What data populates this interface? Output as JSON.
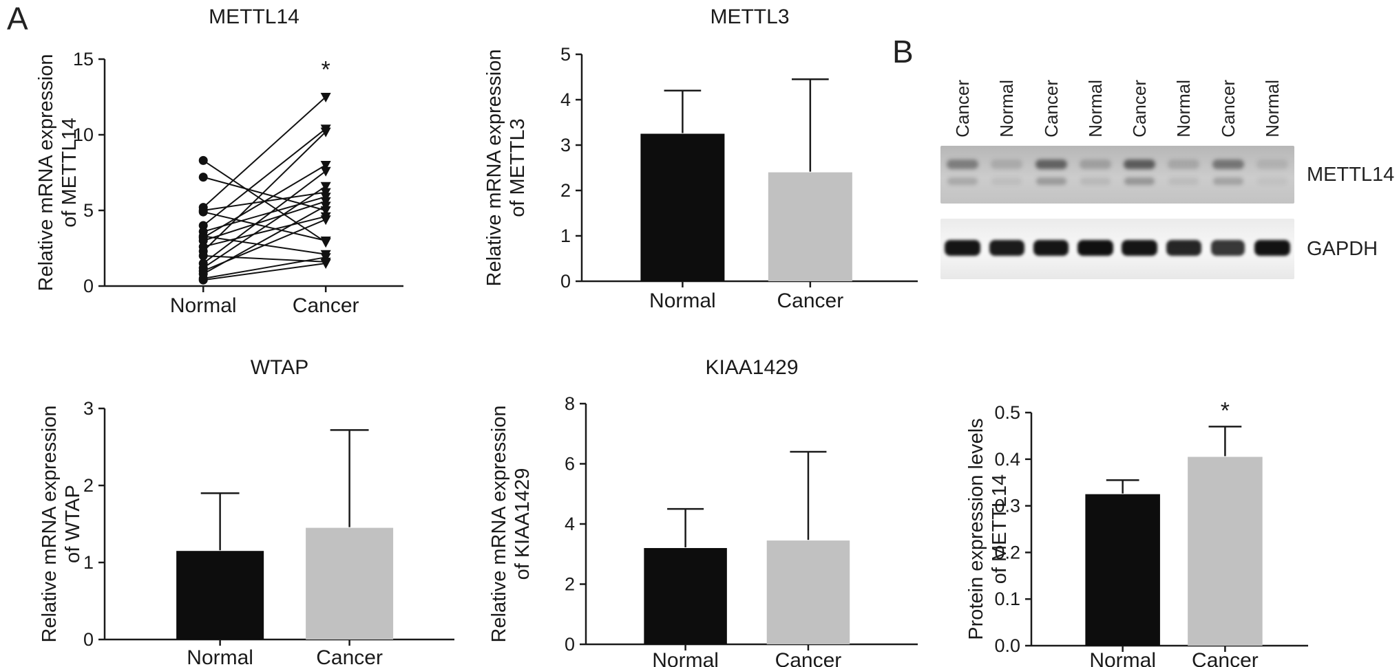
{
  "figure": {
    "panel_a": "A",
    "panel_b": "B",
    "colors": {
      "bar_normal": "#0d0d0d",
      "bar_cancer": "#c1c1c1",
      "axis": "#1a1a1a"
    }
  },
  "chart_data": [
    {
      "id": "mettl14-paired",
      "type": "scatter",
      "subtype": "paired-lines",
      "title": "METTL14",
      "ylabel": [
        "Relative mRNA expression",
        "of METTL14"
      ],
      "categories": [
        "Normal",
        "Cancer"
      ],
      "ylim": [
        0,
        15
      ],
      "yticks": [
        0,
        5,
        10,
        15
      ],
      "ytick_labels": [
        "0",
        "5",
        "10",
        "15"
      ],
      "markers": {
        "Normal": "filled-circle",
        "Cancer": "filled-triangle-down"
      },
      "sig": {
        "label": "*",
        "index": 1,
        "y": 13.8
      },
      "pairs": [
        [
          8.3,
          2.9
        ],
        [
          7.2,
          5.0
        ],
        [
          5.2,
          12.5
        ],
        [
          5.0,
          6.2
        ],
        [
          4.9,
          3.0
        ],
        [
          4.0,
          10.4
        ],
        [
          3.6,
          5.9
        ],
        [
          3.3,
          2.1
        ],
        [
          3.2,
          8.0
        ],
        [
          3.0,
          5.6
        ],
        [
          2.6,
          4.6
        ],
        [
          2.3,
          10.2
        ],
        [
          2.0,
          1.6
        ],
        [
          1.5,
          7.6
        ],
        [
          1.2,
          6.6
        ],
        [
          1.0,
          4.4
        ],
        [
          0.8,
          5.3
        ],
        [
          0.5,
          1.9
        ],
        [
          0.4,
          1.5
        ]
      ]
    },
    {
      "id": "mettl3",
      "type": "bar",
      "title": "METTL3",
      "ylabel": [
        "Relative mRNA expression",
        "of METTL3"
      ],
      "categories": [
        "Normal",
        "Cancer"
      ],
      "ylim": [
        0,
        5
      ],
      "yticks": [
        0,
        1,
        2,
        3,
        4,
        5
      ],
      "ytick_labels": [
        "0",
        "1",
        "2",
        "3",
        "4",
        "5"
      ],
      "values": [
        3.25,
        2.4
      ],
      "errors_up": [
        0.95,
        2.05
      ],
      "bar_colors": [
        "#0d0d0d",
        "#c1c1c1"
      ]
    },
    {
      "id": "wtap",
      "type": "bar",
      "title": "WTAP",
      "ylabel": [
        "Relative mRNA expression",
        "of WTAP"
      ],
      "categories": [
        "Normal",
        "Cancer"
      ],
      "ylim": [
        0,
        3
      ],
      "yticks": [
        0,
        1,
        2,
        3
      ],
      "ytick_labels": [
        "0",
        "1",
        "2",
        "3"
      ],
      "values": [
        1.15,
        1.45
      ],
      "errors_up": [
        0.75,
        1.27
      ],
      "bar_colors": [
        "#0d0d0d",
        "#c1c1c1"
      ]
    },
    {
      "id": "kiaa1429",
      "type": "bar",
      "title": "KIAA1429",
      "ylabel": [
        "Relative mRNA expression",
        "of KIAA1429"
      ],
      "categories": [
        "Normal",
        "Cancer"
      ],
      "ylim": [
        0,
        8
      ],
      "yticks": [
        0,
        2,
        4,
        6,
        8
      ],
      "ytick_labels": [
        "0",
        "2",
        "4",
        "6",
        "8"
      ],
      "values": [
        3.2,
        3.45
      ],
      "errors_up": [
        1.3,
        2.95
      ],
      "bar_colors": [
        "#0d0d0d",
        "#c1c1c1"
      ]
    },
    {
      "id": "mettl14-protein",
      "type": "bar",
      "title": "",
      "ylabel": [
        "Protein expression levels",
        "of METTL14"
      ],
      "categories": [
        "Normal",
        "Cancer"
      ],
      "ylim": [
        0,
        0.5
      ],
      "yticks": [
        0,
        0.1,
        0.2,
        0.3,
        0.4,
        0.5
      ],
      "ytick_labels": [
        "0.0",
        "0.1",
        "0.2",
        "0.3",
        "0.4",
        "0.5"
      ],
      "values": [
        0.325,
        0.405
      ],
      "errors_up": [
        0.03,
        0.065
      ],
      "sig": {
        "label": "*",
        "index": 1
      },
      "bar_colors": [
        "#0d0d0d",
        "#c1c1c1"
      ]
    }
  ],
  "blot": {
    "lane_labels": [
      "Cancer",
      "Normal",
      "Cancer",
      "Normal",
      "Cancer",
      "Normal",
      "Cancer",
      "Normal"
    ],
    "rows": [
      {
        "label": "METTL14",
        "band_intensities": [
          0.55,
          0.2,
          0.78,
          0.28,
          0.82,
          0.22,
          0.62,
          0.15
        ]
      },
      {
        "label": "GAPDH",
        "band_intensities": [
          0.95,
          0.92,
          0.95,
          0.97,
          0.95,
          0.88,
          0.8,
          0.96
        ]
      }
    ]
  }
}
